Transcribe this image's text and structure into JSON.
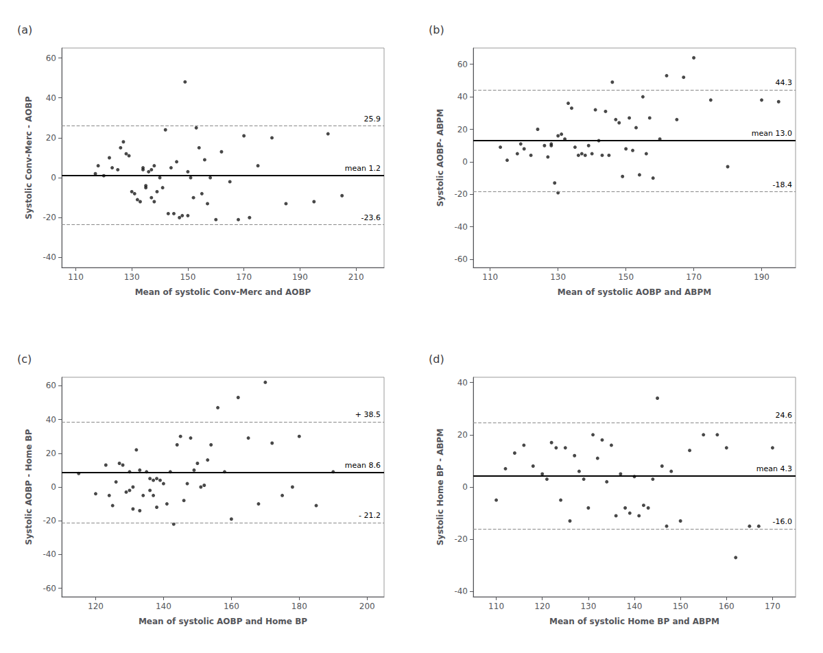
{
  "chart_data": [
    {
      "type": "scatter",
      "title": "(a)",
      "xlabel": "Mean of systolic Conv-Merc and AOBP",
      "ylabel": "Systolic Conv-Merc - AOBP",
      "xlim": [
        105,
        220
      ],
      "ylim": [
        -45,
        65
      ],
      "xticks": [
        110,
        130,
        150,
        170,
        190,
        210
      ],
      "yticks": [
        -40,
        -20,
        0,
        20,
        40,
        60
      ],
      "grid": false,
      "color": "#1a1a1a",
      "x": [
        117,
        118,
        120,
        122,
        123,
        125,
        126,
        127,
        128,
        129,
        130,
        131,
        132,
        133,
        134,
        134,
        135,
        135,
        136,
        137,
        137,
        138,
        138,
        139,
        140,
        141,
        142,
        143,
        144,
        145,
        146,
        147,
        148,
        149,
        150,
        150,
        151,
        152,
        153,
        154,
        155,
        156,
        157,
        158,
        160,
        162,
        165,
        168,
        170,
        172,
        175,
        180,
        185,
        195,
        200,
        205
      ],
      "values": [
        2,
        6,
        1,
        10,
        5,
        4,
        15,
        18,
        12,
        11,
        -7,
        -8,
        -11,
        -12,
        4,
        5,
        -4,
        -5,
        3,
        4,
        -10,
        -12,
        6,
        -7,
        0,
        -5,
        24,
        -18,
        5,
        -18,
        8,
        -20,
        -19,
        48,
        3,
        -19,
        0,
        -10,
        25,
        15,
        -8,
        9,
        -13,
        0,
        -21,
        13,
        -2,
        -21,
        21,
        -20,
        6,
        20,
        -13,
        -12,
        22,
        -9
      ],
      "hlines": [
        {
          "value": 1.2,
          "label": "mean 1.2",
          "color": "#000000",
          "line_style": "solid"
        },
        {
          "value": 25.9,
          "label": "25.9",
          "color": "#888888",
          "line_style": "dashed"
        },
        {
          "value": -23.6,
          "label": "-23.6",
          "color": "#888888",
          "line_style": "dashed"
        }
      ]
    },
    {
      "type": "scatter",
      "title": "(b)",
      "xlabel": "Mean of systolic AOBP and ABPM",
      "ylabel": "Systolic AOBP- ABPM",
      "xlim": [
        105,
        200
      ],
      "ylim": [
        -65,
        70
      ],
      "xticks": [
        110,
        130,
        150,
        170,
        190
      ],
      "yticks": [
        -60,
        -40,
        -20,
        0,
        20,
        40,
        60
      ],
      "grid": false,
      "color": "#1a1a1a",
      "x": [
        113,
        115,
        118,
        119,
        120,
        122,
        124,
        126,
        127,
        128,
        128,
        129,
        130,
        130,
        131,
        132,
        133,
        134,
        135,
        136,
        137,
        138,
        139,
        140,
        141,
        142,
        143,
        144,
        145,
        146,
        147,
        148,
        149,
        150,
        151,
        152,
        153,
        154,
        155,
        156,
        157,
        158,
        160,
        162,
        165,
        167,
        170,
        175,
        180,
        190,
        195
      ],
      "values": [
        9,
        1,
        5,
        11,
        8,
        4,
        20,
        10,
        3,
        10,
        11,
        -13,
        -19,
        16,
        17,
        14,
        36,
        33,
        9,
        4,
        5,
        4,
        10,
        5,
        32,
        13,
        4,
        31,
        4,
        49,
        26,
        24,
        -9,
        8,
        27,
        7,
        21,
        -8,
        40,
        5,
        27,
        -10,
        14,
        53,
        26,
        52,
        64,
        38,
        -3,
        38,
        37
      ],
      "hlines": [
        {
          "value": 13.0,
          "label": "mean 13.0",
          "color": "#000000",
          "line_style": "solid"
        },
        {
          "value": 44.3,
          "label": "44.3",
          "color": "#888888",
          "line_style": "dashed"
        },
        {
          "value": -18.4,
          "label": "-18.4",
          "color": "#888888",
          "line_style": "dashed"
        }
      ]
    },
    {
      "type": "scatter",
      "title": "(c)",
      "xlabel": "Mean of systolic AOBP and Home BP",
      "ylabel": "Systolic AOBP - Home BP",
      "xlim": [
        110,
        205
      ],
      "ylim": [
        -65,
        65
      ],
      "xticks": [
        120,
        140,
        160,
        180,
        200
      ],
      "yticks": [
        -60,
        -40,
        -20,
        0,
        20,
        40,
        60
      ],
      "grid": false,
      "color": "#1a1a1a",
      "x": [
        115,
        120,
        123,
        124,
        125,
        126,
        127,
        128,
        129,
        130,
        130,
        131,
        131,
        132,
        133,
        133,
        134,
        135,
        136,
        136,
        137,
        137,
        138,
        138,
        139,
        140,
        141,
        142,
        143,
        144,
        145,
        146,
        147,
        148,
        149,
        150,
        151,
        152,
        153,
        154,
        156,
        158,
        160,
        162,
        165,
        168,
        170,
        172,
        175,
        178,
        180,
        185,
        190
      ],
      "values": [
        8,
        -4,
        13,
        -5,
        -11,
        3,
        14,
        13,
        -3,
        -2,
        9,
        0,
        -13,
        22,
        -14,
        10,
        -5,
        9,
        5,
        -2,
        4,
        -5,
        5,
        -12,
        4,
        2,
        -10,
        9,
        -22,
        25,
        30,
        -8,
        2,
        29,
        10,
        14,
        0,
        1,
        16,
        25,
        47,
        9,
        -19,
        53,
        29,
        -10,
        62,
        26,
        -5,
        0,
        30,
        -11,
        9
      ],
      "hlines": [
        {
          "value": 8.6,
          "label": "mean 8.6",
          "color": "#000000",
          "line_style": "solid"
        },
        {
          "value": 38.5,
          "label": "+ 38.5",
          "color": "#888888",
          "line_style": "dashed"
        },
        {
          "value": -21.2,
          "label": "- 21.2",
          "color": "#888888",
          "line_style": "dashed"
        }
      ]
    },
    {
      "type": "scatter",
      "title": "(d)",
      "xlabel": "Mean of systolic Home BP and ABPM",
      "ylabel": "Systolic Home BP - ABPM",
      "xlim": [
        105,
        175
      ],
      "ylim": [
        -42,
        42
      ],
      "xticks": [
        110,
        120,
        130,
        140,
        150,
        160,
        170
      ],
      "yticks": [
        -40,
        -20,
        0,
        20,
        40
      ],
      "grid": false,
      "color": "#1a1a1a",
      "x": [
        110,
        112,
        114,
        116,
        118,
        120,
        121,
        122,
        123,
        124,
        125,
        126,
        127,
        128,
        129,
        130,
        131,
        132,
        133,
        134,
        135,
        136,
        137,
        138,
        139,
        140,
        141,
        142,
        143,
        144,
        145,
        146,
        147,
        148,
        150,
        152,
        155,
        158,
        160,
        162,
        165,
        167,
        170
      ],
      "values": [
        -5,
        7,
        13,
        16,
        8,
        5,
        3,
        17,
        15,
        -5,
        15,
        -13,
        12,
        6,
        3,
        -8,
        20,
        11,
        18,
        2,
        16,
        -11,
        5,
        -8,
        -10,
        4,
        -11,
        -7,
        -8,
        3,
        34,
        8,
        -15,
        6,
        -13,
        14,
        20,
        20,
        15,
        -27,
        -15,
        -15,
        15
      ],
      "hlines": [
        {
          "value": 4.3,
          "label": "mean 4.3",
          "color": "#000000",
          "line_style": "solid"
        },
        {
          "value": 24.6,
          "label": "24.6",
          "color": "#888888",
          "line_style": "dashed"
        },
        {
          "value": -16.0,
          "label": "-16.0",
          "color": "#888888",
          "line_style": "dashed"
        }
      ]
    }
  ]
}
